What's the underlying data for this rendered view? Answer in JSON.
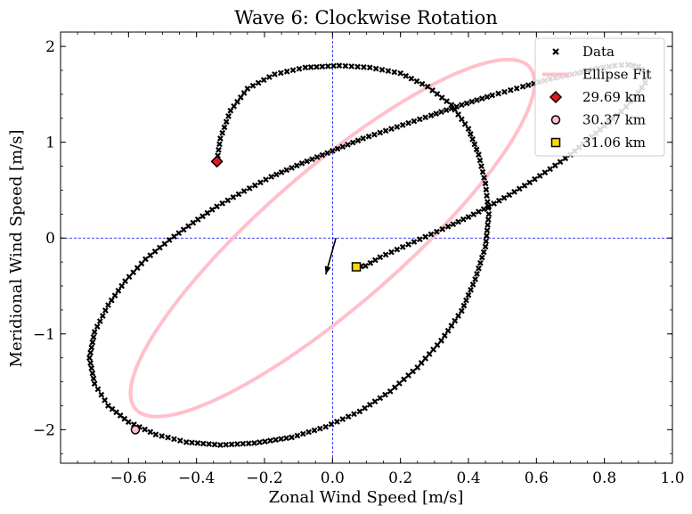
{
  "chart_data": {
    "type": "scatter",
    "title": "Wave 6: Clockwise Rotation",
    "xlabel": "Zonal Wind Speed [m/s]",
    "ylabel": "Meridional Wind Speed [m/s]",
    "xlim": [
      -0.8,
      1.0
    ],
    "ylim": [
      -2.35,
      2.15
    ],
    "xticks": [
      -0.6,
      -0.4,
      -0.2,
      0.0,
      0.2,
      0.4,
      0.6,
      0.8,
      1.0
    ],
    "xtick_labels": [
      "−0.6",
      "−0.4",
      "−0.2",
      "0.0",
      "0.2",
      "0.4",
      "0.6",
      "0.8",
      "1.0"
    ],
    "yticks": [
      -2,
      -1,
      0,
      1,
      2
    ],
    "ytick_labels": [
      "−2",
      "−1",
      "0",
      "1",
      "2"
    ],
    "reference_lines": {
      "x": 0.0,
      "y": 0.0,
      "color": "#0000ff",
      "style": "dashed"
    },
    "legend_position": "top-right",
    "legend": [
      {
        "label": "Data",
        "marker": "x",
        "color": "#000000"
      },
      {
        "label": "Ellipse Fit",
        "marker": "line",
        "color": "#ffc0cb"
      },
      {
        "label": "29.69 km",
        "marker": "diamond",
        "color": "#e31a1c"
      },
      {
        "label": "30.37 km",
        "marker": "circle",
        "color": "#ffc0cb"
      },
      {
        "label": "31.06 km",
        "marker": "square",
        "color": "#ffd700"
      }
    ],
    "series": [
      {
        "name": "Data",
        "x": [
          0.07,
          0.097,
          0.14,
          0.19,
          0.24,
          0.29,
          0.34,
          0.4,
          0.46,
          0.52,
          0.58,
          0.64,
          0.7,
          0.75,
          0.8,
          0.85,
          0.89,
          0.92,
          0.92,
          0.9,
          0.87,
          0.83,
          0.78,
          0.72,
          0.64,
          0.56,
          0.47,
          0.38,
          0.29,
          0.19,
          0.09,
          0.0,
          -0.09,
          -0.18,
          -0.26,
          -0.34,
          -0.41,
          -0.48,
          -0.55,
          -0.61,
          -0.66,
          -0.7,
          -0.715,
          -0.7,
          -0.66,
          -0.6,
          -0.52,
          -0.43,
          -0.33,
          -0.23,
          -0.12,
          -0.02,
          0.08,
          0.17,
          0.25,
          0.32,
          0.38,
          0.42,
          0.45,
          0.46,
          0.45,
          0.43,
          0.4,
          0.35,
          0.28,
          0.2,
          0.11,
          0.02,
          -0.08,
          -0.17,
          -0.25,
          -0.3,
          -0.33,
          -0.34
        ],
        "y": [
          -0.3,
          -0.29,
          -0.2,
          -0.12,
          -0.04,
          0.04,
          0.12,
          0.22,
          0.33,
          0.45,
          0.58,
          0.72,
          0.87,
          1.02,
          1.17,
          1.32,
          1.47,
          1.62,
          1.73,
          1.79,
          1.81,
          1.8,
          1.77,
          1.72,
          1.66,
          1.58,
          1.49,
          1.39,
          1.28,
          1.16,
          1.04,
          0.91,
          0.78,
          0.64,
          0.49,
          0.33,
          0.16,
          -0.02,
          -0.22,
          -0.45,
          -0.7,
          -0.98,
          -1.25,
          -1.52,
          -1.75,
          -1.92,
          -2.05,
          -2.13,
          -2.16,
          -2.14,
          -2.08,
          -1.97,
          -1.81,
          -1.6,
          -1.35,
          -1.07,
          -0.76,
          -0.43,
          -0.09,
          0.25,
          0.57,
          0.87,
          1.14,
          1.39,
          1.58,
          1.72,
          1.78,
          1.8,
          1.78,
          1.71,
          1.56,
          1.33,
          1.04,
          0.8
        ]
      },
      {
        "name": "Ellipse Fit",
        "center": [
          0.0,
          0.0
        ],
        "semi_major_axis": [
          0.575,
          1.8
        ],
        "semi_minor_axis": [
          -0.15,
          0.48
        ]
      }
    ],
    "markers": [
      {
        "label": "29.69 km",
        "x": -0.34,
        "y": 0.8
      },
      {
        "label": "30.37 km",
        "x": -0.58,
        "y": -2.0
      },
      {
        "label": "31.06 km",
        "x": 0.07,
        "y": -0.3
      }
    ],
    "arrow": {
      "from": [
        0.01,
        0.0
      ],
      "to": [
        -0.02,
        -0.38
      ],
      "color": "#000000"
    }
  }
}
